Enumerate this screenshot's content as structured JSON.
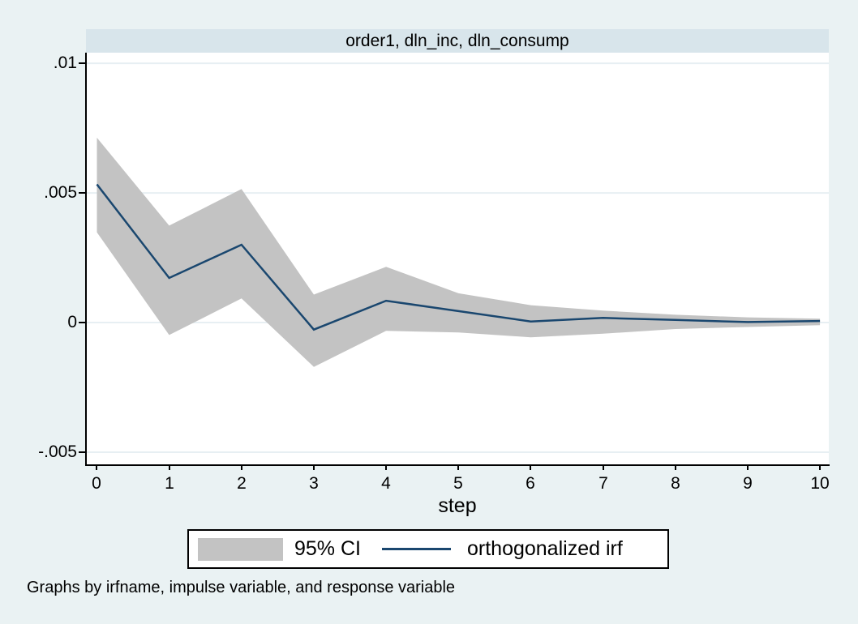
{
  "graph": {
    "title": "order1, dln_inc, dln_consump",
    "xlabel": "step",
    "caption": "Graphs by irfname, impulse variable, and response variable",
    "legend": {
      "ci_label": "95% CI",
      "irf_label": "orthogonalized irf"
    },
    "colors": {
      "background": "#eaf2f3",
      "title_band": "#d8e5eb",
      "plot_background": "#ffffff",
      "gridline": "#e7eff3",
      "ci_fill": "#c3c3c3",
      "irf_line": "#1a476f",
      "axis": "#000000"
    }
  },
  "chart_data": {
    "type": "line",
    "title": "order1, dln_inc, dln_consump",
    "xlabel": "step",
    "ylabel": "",
    "x": [
      0,
      1,
      2,
      3,
      4,
      5,
      6,
      7,
      8,
      9,
      10
    ],
    "series": [
      {
        "name": "95% CI",
        "kind": "band",
        "lower": [
          0.00348,
          -0.00048,
          0.00093,
          -0.00171,
          -0.00032,
          -0.00038,
          -0.00057,
          -0.00043,
          -0.00025,
          -0.00017,
          -0.0001
        ],
        "upper": [
          0.00713,
          0.00374,
          0.00515,
          0.00108,
          0.00215,
          0.00113,
          0.00067,
          0.00046,
          0.0003,
          0.0002,
          0.00015
        ]
      },
      {
        "name": "orthogonalized irf",
        "kind": "line",
        "values": [
          0.00533,
          0.00172,
          0.003,
          -0.00027,
          0.00084,
          0.00044,
          4e-05,
          0.00018,
          0.0001,
          2e-05,
          6e-05
        ]
      }
    ],
    "xticks": {
      "values": [
        0,
        1,
        2,
        3,
        4,
        5,
        6,
        7,
        8,
        9,
        10
      ],
      "labels": [
        "0",
        "1",
        "2",
        "3",
        "4",
        "5",
        "6",
        "7",
        "8",
        "9",
        "10"
      ]
    },
    "yticks": {
      "values": [
        0.01,
        0.005,
        0,
        -0.005
      ],
      "labels": [
        ".01",
        ".005",
        "0",
        "-.005"
      ]
    },
    "xlim": [
      -0.151,
      10.122
    ],
    "ylim": [
      -0.00547,
      0.01041
    ],
    "grid": true,
    "legend_position": "bottom"
  }
}
